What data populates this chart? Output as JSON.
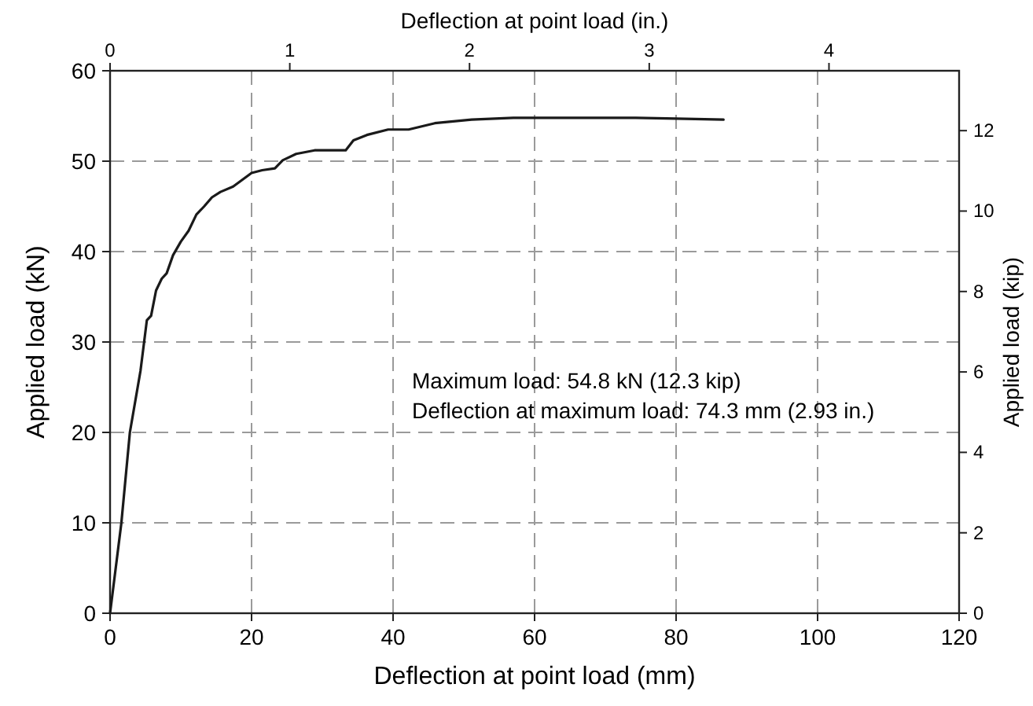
{
  "chart_data": {
    "type": "line",
    "xlabel": "Deflection at point load (mm)",
    "ylabel": "Applied load (kN)",
    "x2label": "Deflection at point load (in.)",
    "y2label": "Applied load (kip)",
    "xlim": [
      0,
      120
    ],
    "xticks": [
      0,
      20,
      40,
      60,
      80,
      100,
      120
    ],
    "ylim": [
      0,
      60
    ],
    "yticks": [
      0,
      10,
      20,
      30,
      40,
      50,
      60
    ],
    "x2lim": [
      0,
      4.724
    ],
    "x2ticks": [
      0,
      1,
      2,
      3,
      4
    ],
    "y2lim": [
      0,
      13.489
    ],
    "y2ticks": [
      0,
      2,
      4,
      6,
      8,
      10,
      12
    ],
    "grid": true,
    "line_style": "solid",
    "marker": "none",
    "annotations": [
      "Maximum load:  54.8 kN (12.3 kip)",
      "Deflection at maximum load: 74.3 mm (2.93 in.)"
    ],
    "series": [
      {
        "color": "#1a1a1a",
        "x": [
          0,
          1.6,
          2.8,
          4.3,
          5.2,
          5.8,
          6.5,
          7.3,
          8.0,
          8.9,
          10.0,
          11.1,
          12.2,
          13.3,
          14.4,
          15.6,
          17.4,
          20.0,
          21.5,
          23.3,
          24.4,
          26.3,
          28.9,
          33.3,
          34.4,
          36.3,
          39.3,
          42.2,
          45.9,
          51.1,
          57.0,
          64.4,
          74.3,
          80.0,
          86.7
        ],
        "values": [
          0,
          10,
          20,
          26.8,
          32.4,
          32.9,
          35.7,
          37.0,
          37.6,
          39.6,
          41.1,
          42.3,
          44.1,
          45.0,
          46.0,
          46.6,
          47.2,
          48.7,
          49.0,
          49.2,
          50.1,
          50.8,
          51.2,
          51.2,
          52.3,
          52.9,
          53.5,
          53.5,
          54.2,
          54.6,
          54.8,
          54.8,
          54.8,
          54.7,
          54.6
        ]
      }
    ]
  }
}
